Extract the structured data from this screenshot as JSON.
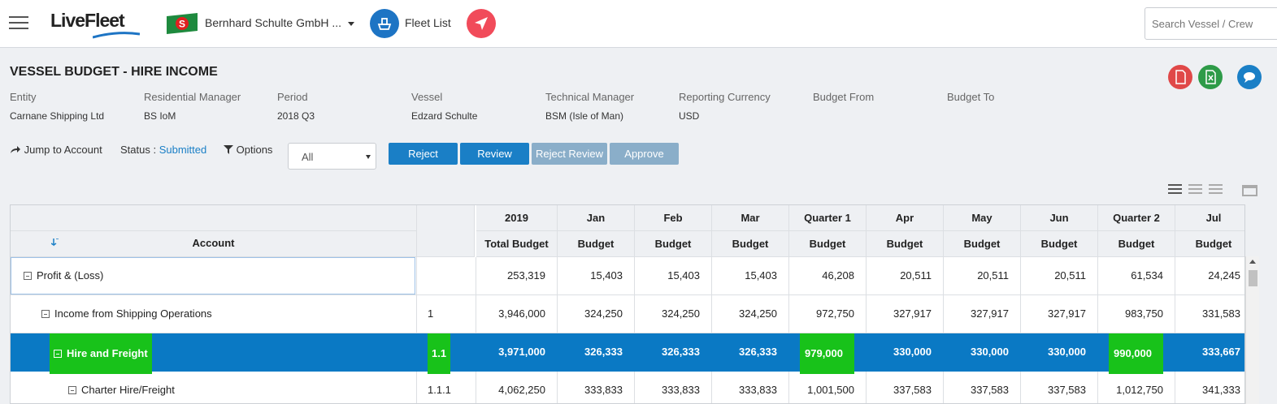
{
  "topbar": {
    "logo": "LiveFleet",
    "entity": "Bernhard Schulte GmbH ...",
    "flag_letter": "S",
    "fleet_list": "Fleet List",
    "search_placeholder": "Search Vessel / Crew"
  },
  "page": {
    "title": "VESSEL BUDGET - HIRE INCOME",
    "meta": [
      {
        "label": "Entity",
        "value": "Carnane Shipping Ltd"
      },
      {
        "label": "Residential Manager",
        "value": "BS IoM"
      },
      {
        "label": "Period",
        "value": "2018 Q3"
      },
      {
        "label": "Vessel",
        "value": "Edzard Schulte"
      },
      {
        "label": "Technical Manager",
        "value": "BSM (Isle of Man)"
      },
      {
        "label": "Reporting Currency",
        "value": "USD"
      },
      {
        "label": "Budget From",
        "value": ""
      },
      {
        "label": "Budget To",
        "value": ""
      }
    ]
  },
  "toolbar": {
    "jump": "Jump to Account",
    "status_label": "Status : ",
    "status_value": "Submitted",
    "options": "Options",
    "filter_value": "All",
    "buttons": [
      "Reject",
      "Review",
      "Reject Review",
      "Approve"
    ]
  },
  "table": {
    "account_header": "Account",
    "col_top": [
      "2019",
      "Jan",
      "Feb",
      "Mar",
      "Quarter 1",
      "Apr",
      "May",
      "Jun",
      "Quarter 2",
      "Jul"
    ],
    "col_sub": [
      "Total Budget",
      "Budget",
      "Budget",
      "Budget",
      "Budget",
      "Budget",
      "Budget",
      "Budget",
      "Budget",
      "Budget"
    ],
    "rows": [
      {
        "account": "Profit & (Loss)",
        "code": "",
        "values": [
          "253,319",
          "15,403",
          "15,403",
          "15,403",
          "46,208",
          "20,511",
          "20,511",
          "20,511",
          "61,534",
          "24,245"
        ]
      },
      {
        "account": "Income from Shipping Operations",
        "code": "1",
        "values": [
          "3,946,000",
          "324,250",
          "324,250",
          "324,250",
          "972,750",
          "327,917",
          "327,917",
          "327,917",
          "983,750",
          "331,583"
        ]
      },
      {
        "account": "Hire and Freight",
        "code": "1.1",
        "values": [
          "3,971,000",
          "326,333",
          "326,333",
          "326,333",
          "979,000",
          "330,000",
          "330,000",
          "330,000",
          "990,000",
          "333,667"
        ]
      },
      {
        "account": "Charter Hire/Freight",
        "code": "1.1.1",
        "values": [
          "4,062,250",
          "333,833",
          "333,833",
          "333,833",
          "1,001,500",
          "337,583",
          "337,583",
          "337,583",
          "1,012,750",
          "341,333"
        ]
      }
    ]
  }
}
